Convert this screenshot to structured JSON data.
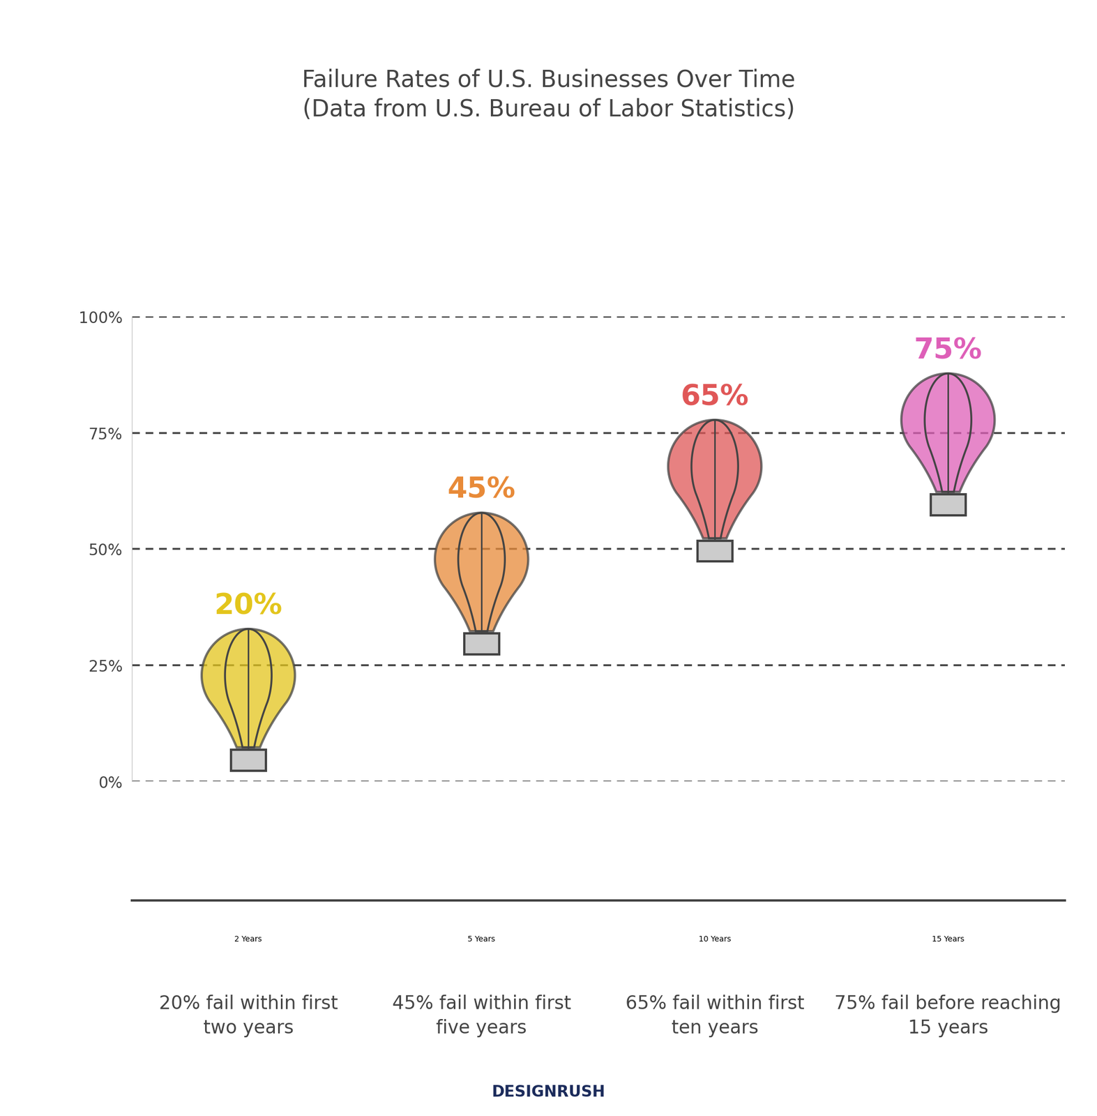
{
  "chart_data": {
    "type": "balloon",
    "title": "Failure Rates of U.S. Businesses Over Time\n(Data from U.S. Bureau of Labor Statistics)",
    "categories": [
      "2 Years",
      "5 Years",
      "10 Years",
      "15 Years"
    ],
    "values": [
      20,
      45,
      65,
      75
    ],
    "value_labels": [
      "20%",
      "45%",
      "65%",
      "75%"
    ],
    "data_labels": true,
    "colors": [
      "#E3C51C",
      "#E88A38",
      "#E05757",
      "#DE5FB8"
    ],
    "annotations": [
      "20% fail within first two years",
      "45% fail within first five years",
      "65% fail within first ten years",
      "75% fail before reaching 15 years"
    ],
    "footer": "DESIGNRUSH",
    "ylim": [
      0,
      100
    ],
    "yticks": [
      {
        "value": 0,
        "label": "0%"
      },
      {
        "value": 25,
        "label": "25%"
      },
      {
        "value": 50,
        "label": "50%"
      },
      {
        "value": 75,
        "label": "75%"
      },
      {
        "value": 100,
        "label": "100%"
      }
    ],
    "grid": true
  }
}
